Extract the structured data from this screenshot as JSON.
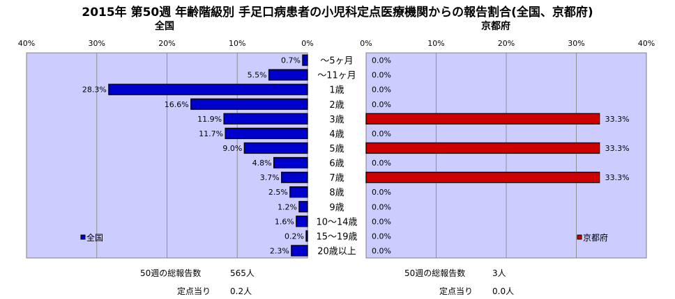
{
  "title": "2015年 第50週 年齢階級別 手足口病患者の小児科定点医療機関からの報告割合(全国、京都府)",
  "left_subtitle": "全国",
  "right_subtitle": "京都府",
  "colors": {
    "left_bar": "#0000CC",
    "right_bar": "#CC0000",
    "plot_bg": "#CCCCFF"
  },
  "chart_data": [
    {
      "type": "bar",
      "orientation": "horizontal",
      "direction": "right-to-left",
      "subtitle": "全国",
      "categories": [
        "〜5ヶ月",
        "〜11ヶ月",
        "1歳",
        "2歳",
        "3歳",
        "4歳",
        "5歳",
        "6歳",
        "7歳",
        "8歳",
        "9歳",
        "10〜14歳",
        "15〜19歳",
        "20歳以上"
      ],
      "series": [
        {
          "name": "全国",
          "values": [
            0.7,
            5.5,
            28.3,
            16.6,
            11.9,
            11.7,
            9.0,
            4.8,
            3.7,
            2.5,
            1.2,
            1.6,
            0.2,
            2.3
          ]
        }
      ],
      "data_labels": [
        "0.7%",
        "5.5%",
        "28.3%",
        "16.6%",
        "11.9%",
        "11.7%",
        "9.0%",
        "4.8%",
        "3.7%",
        "2.5%",
        "1.2%",
        "1.6%",
        "0.2%",
        "2.3%"
      ],
      "xlim": [
        0,
        40
      ],
      "ticks": [
        "40%",
        "30%",
        "20%",
        "10%",
        "0%"
      ],
      "grid": true,
      "legend": "bottom-left",
      "stats": {
        "total_label": "50週の総報告数",
        "total_value": "565人",
        "per_label": "定点当り",
        "per_value": "0.2人"
      }
    },
    {
      "type": "bar",
      "orientation": "horizontal",
      "direction": "left-to-right",
      "subtitle": "京都府",
      "categories": [
        "〜5ヶ月",
        "〜11ヶ月",
        "1歳",
        "2歳",
        "3歳",
        "4歳",
        "5歳",
        "6歳",
        "7歳",
        "8歳",
        "9歳",
        "10〜14歳",
        "15〜19歳",
        "20歳以上"
      ],
      "series": [
        {
          "name": "京都府",
          "values": [
            0,
            0,
            0,
            0,
            33.3,
            0,
            33.3,
            0,
            33.3,
            0,
            0,
            0,
            0,
            0
          ]
        }
      ],
      "data_labels": [
        "0.0%",
        "0.0%",
        "0.0%",
        "0.0%",
        "33.3%",
        "0.0%",
        "33.3%",
        "0.0%",
        "33.3%",
        "0.0%",
        "0.0%",
        "0.0%",
        "0.0%",
        "0.0%"
      ],
      "xlim": [
        0,
        40
      ],
      "ticks": [
        "0%",
        "10%",
        "20%",
        "30%",
        "40%"
      ],
      "grid": true,
      "legend": "bottom-right",
      "stats": {
        "total_label": "50週の総報告数",
        "total_value": "3人",
        "per_label": "定点当り",
        "per_value": "0.0人"
      }
    }
  ]
}
